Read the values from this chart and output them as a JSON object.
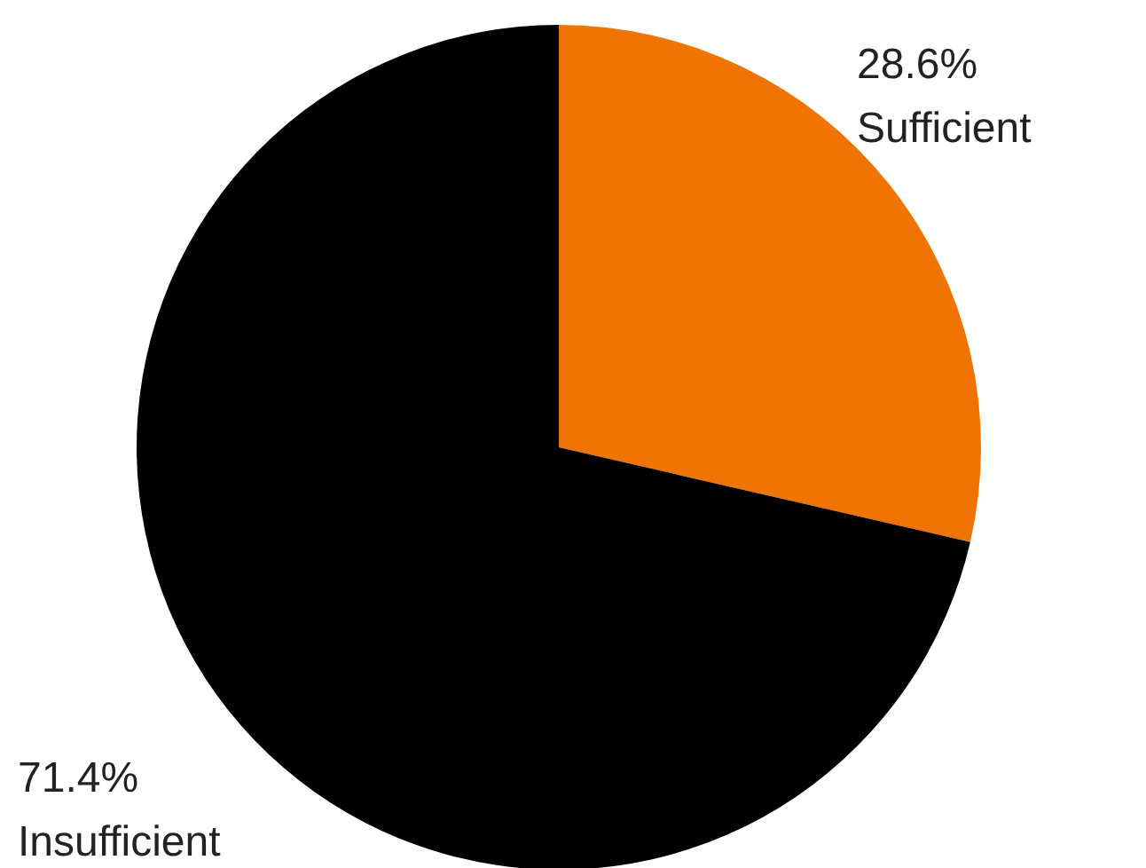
{
  "chart_data": {
    "type": "pie",
    "categories": [
      "Sufficient",
      "Insufficient"
    ],
    "values": [
      28.6,
      71.4
    ],
    "colors": [
      "#ef7404",
      "#000000"
    ],
    "value_labels": [
      "28.6%",
      "71.4%"
    ]
  }
}
